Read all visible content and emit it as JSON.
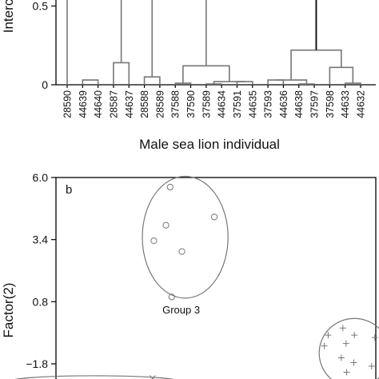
{
  "chart_data": [
    {
      "type": "dendrogram",
      "ylabel": "Interc",
      "xlabel": "Male sea lion individual",
      "y_ticks": [
        "0",
        "0.5"
      ],
      "leaves": [
        "28590",
        "44639",
        "44640",
        "28587",
        "44637",
        "28588",
        "28589",
        "37588",
        "37590",
        "37589",
        "44634",
        "37591",
        "44635",
        "37593",
        "44636",
        "44638",
        "37597",
        "37598",
        "44633",
        "44632"
      ],
      "merges": [
        {
          "left": "28590",
          "right": "44639,44640",
          "height": 0.9
        },
        {
          "left": "44639",
          "right": "44640",
          "height": 0.03
        },
        {
          "left": "28587",
          "right": "44637",
          "height": 0.14
        },
        {
          "left": "28588",
          "right": "28589",
          "height": 0.05
        },
        {
          "left": "37588",
          "right": "37590",
          "height": 0.01
        },
        {
          "left": "37589",
          "right": "44634",
          "height": 0.005
        },
        {
          "left": "37591",
          "right": "44635",
          "height": 0.02
        },
        {
          "left": "37589-44634",
          "right": "37591-44635",
          "height": 0.02
        },
        {
          "left": "37588-37590",
          "right": "37589-37591",
          "height": 0.12
        },
        {
          "left": "37593",
          "right": "44636",
          "height": 0.03
        },
        {
          "left": "44638",
          "right": "37597",
          "height": 0.005
        },
        {
          "left": "37598",
          "right": "44633-44632",
          "height": 0.11
        },
        {
          "left": "44633",
          "right": "44632",
          "height": 0.01
        },
        {
          "left": "37593-37597",
          "right": "37598-44632",
          "height": 0.22
        }
      ]
    },
    {
      "type": "scatter",
      "panel_label": "b",
      "ylabel": "Factor(2)",
      "y_ticks": [
        6.0,
        3.4,
        0.8,
        -1.8
      ],
      "y_tick_labels": [
        "6.0",
        "3.4",
        "0.8",
        "−1.8"
      ],
      "ylim": [
        -2.4,
        6.0
      ],
      "xlim": [
        0,
        1
      ],
      "groups": [
        {
          "label": "Group 3",
          "marker": "circle",
          "points": [
            {
              "x": 0.357,
              "y": 5.6
            },
            {
              "x": 0.344,
              "y": 4.0
            },
            {
              "x": 0.306,
              "y": 3.35
            },
            {
              "x": 0.495,
              "y": 4.35
            },
            {
              "x": 0.394,
              "y": 2.9
            },
            {
              "x": 0.362,
              "y": 1.0
            }
          ],
          "ellipse": {
            "cx": 0.404,
            "cy": 3.5,
            "rx": 0.134,
            "ry": 2.55
          }
        },
        {
          "label": "",
          "marker": "plus",
          "points": [
            {
              "x": 0.851,
              "y": -0.6
            },
            {
              "x": 0.897,
              "y": -0.3
            },
            {
              "x": 0.933,
              "y": -0.6
            },
            {
              "x": 0.997,
              "y": -0.7
            },
            {
              "x": 0.907,
              "y": -0.95
            },
            {
              "x": 0.839,
              "y": -1.05
            },
            {
              "x": 0.892,
              "y": -1.55
            },
            {
              "x": 0.931,
              "y": -1.75
            },
            {
              "x": 0.987,
              "y": -1.9
            },
            {
              "x": 0.909,
              "y": -2.15
            }
          ],
          "ellipse": {
            "cx": 0.933,
            "cy": -1.35,
            "rx": 0.11,
            "ry": 1.45
          }
        },
        {
          "label": "",
          "marker": "x",
          "points": [
            {
              "x": 0.302,
              "y": -2.4
            }
          ],
          "ellipse": {
            "cx": 0.12,
            "cy": -2.55,
            "rx": 0.27,
            "ry": 0.25
          }
        }
      ]
    }
  ]
}
